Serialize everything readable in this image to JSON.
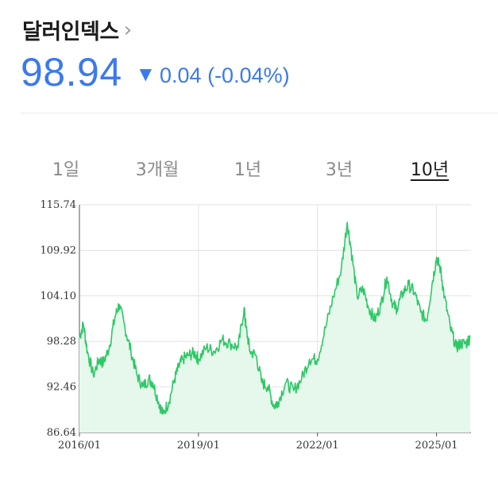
{
  "header": {
    "title": "달러인덱스",
    "chevron": "›",
    "price": "98.94",
    "direction_arrow": "▼",
    "change": "0.04 (-0.04%)",
    "accent_color": "#3b79ee"
  },
  "tabs": [
    {
      "label": "1일",
      "active": false
    },
    {
      "label": "3개월",
      "active": false
    },
    {
      "label": "1년",
      "active": false
    },
    {
      "label": "3년",
      "active": false
    },
    {
      "label": "10년",
      "active": true
    }
  ],
  "chart_data": {
    "type": "area",
    "line_color": "#2ec866",
    "fill_color": "#e6f8ec",
    "grid": true,
    "ylim": [
      86.64,
      115.74
    ],
    "y_ticks": [
      "115.74",
      "109.92",
      "104.10",
      "98.28",
      "92.46",
      "86.64"
    ],
    "x_ticks": [
      "2016/01",
      "2019/01",
      "2022/01",
      "2025/01"
    ],
    "series": [
      {
        "x": [
          2016.0,
          2016.1,
          2016.2,
          2016.35,
          2016.5,
          2016.6,
          2016.75,
          2016.9,
          2017.0,
          2017.15,
          2017.3,
          2017.45,
          2017.6,
          2017.75,
          2017.85,
          2018.0,
          2018.1,
          2018.25,
          2018.4,
          2018.5,
          2018.6,
          2018.75,
          2018.9,
          2019.0,
          2019.2,
          2019.4,
          2019.6,
          2019.8,
          2020.0,
          2020.15,
          2020.2,
          2020.3,
          2020.45,
          2020.6,
          2020.75,
          2020.9,
          2021.0,
          2021.2,
          2021.4,
          2021.6,
          2021.8,
          2022.0,
          2022.2,
          2022.4,
          2022.6,
          2022.75,
          2022.85,
          2023.0,
          2023.15,
          2023.3,
          2023.45,
          2023.6,
          2023.75,
          2023.9,
          2024.0,
          2024.15,
          2024.3,
          2024.45,
          2024.6,
          2024.75,
          2024.9,
          2025.0,
          2025.1,
          2025.2,
          2025.35,
          2025.5,
          2025.6,
          2025.75,
          2025.85
        ],
        "values": [
          98.8,
          100.5,
          97.0,
          94.0,
          96.0,
          95.5,
          97.5,
          101.5,
          103.0,
          100.0,
          97.0,
          94.0,
          92.5,
          93.5,
          93.0,
          90.5,
          89.0,
          90.5,
          93.5,
          95.0,
          96.0,
          96.5,
          96.8,
          96.0,
          97.5,
          97.0,
          98.5,
          98.0,
          97.5,
          102.5,
          100.0,
          97.0,
          96.5,
          93.0,
          92.5,
          90.0,
          90.5,
          93.0,
          92.0,
          93.5,
          96.0,
          96.0,
          100.0,
          104.0,
          107.5,
          113.5,
          110.0,
          104.0,
          105.0,
          102.5,
          101.0,
          103.0,
          106.5,
          103.0,
          102.5,
          104.5,
          105.5,
          104.5,
          102.0,
          101.0,
          106.0,
          109.0,
          107.5,
          104.0,
          100.0,
          97.5,
          98.0,
          98.0,
          98.9
        ]
      }
    ]
  }
}
